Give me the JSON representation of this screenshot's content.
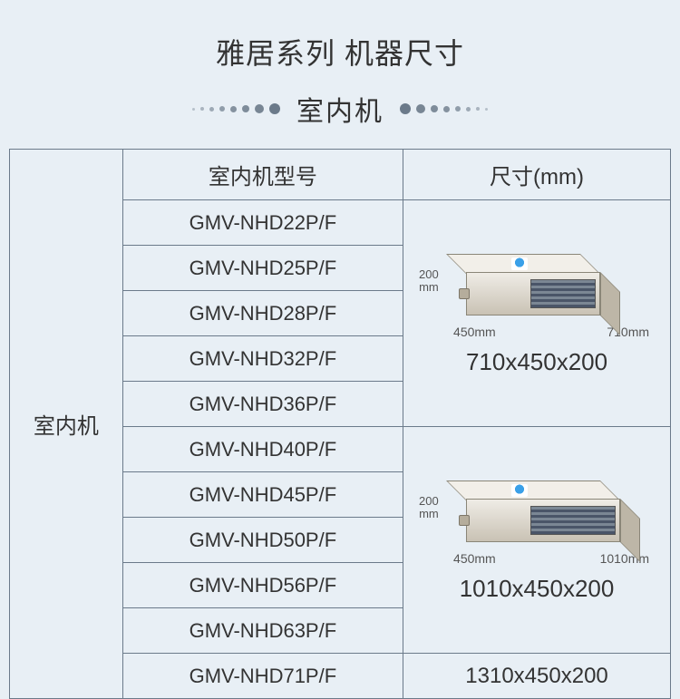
{
  "title": "雅居系列 机器尺寸",
  "subtitle": "室内机",
  "table": {
    "side_label": "室内机",
    "headers": {
      "model": "室内机型号",
      "size": "尺寸(mm)"
    },
    "group1": {
      "models": [
        "GMV-NHD22P/F",
        "GMV-NHD25P/F",
        "GMV-NHD28P/F",
        "GMV-NHD32P/F",
        "GMV-NHD36P/F"
      ],
      "diagram": {
        "height_label": "200",
        "height_unit": "mm",
        "depth_label": "450mm",
        "width_label": "710mm"
      },
      "size_text": "710x450x200"
    },
    "group2": {
      "models": [
        "GMV-NHD40P/F",
        "GMV-NHD45P/F",
        "GMV-NHD50P/F",
        "GMV-NHD56P/F",
        "GMV-NHD63P/F"
      ],
      "diagram": {
        "height_label": "200",
        "height_unit": "mm",
        "depth_label": "450mm",
        "width_label": "1010mm"
      },
      "size_text": "1010x450x200"
    },
    "group3": {
      "models": [
        "GMV-NHD71P/F"
      ],
      "size_text": "1310x450x200"
    }
  },
  "colors": {
    "background": "#e8eff5",
    "border": "#6b7a8a",
    "text": "#333333"
  }
}
